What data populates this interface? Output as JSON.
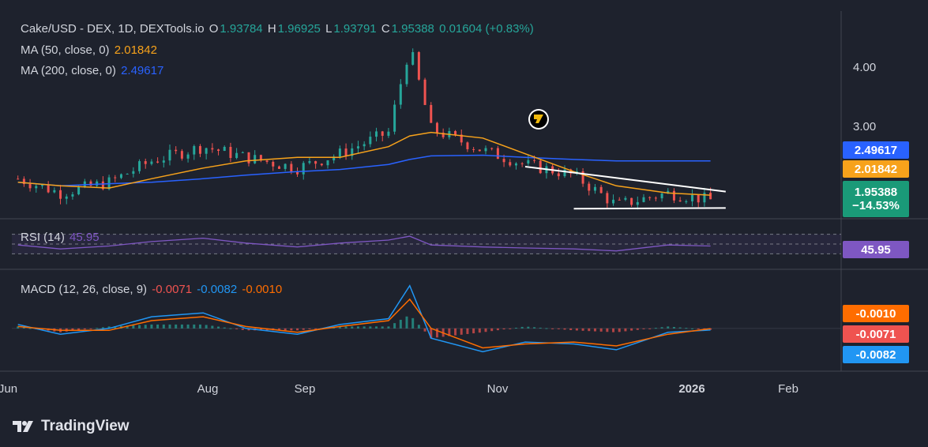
{
  "header": {
    "title": "Cake/USD - DEX, 1D, DEXTools.io",
    "o_label": "O",
    "o_value": "1.93784",
    "h_label": "H",
    "h_value": "1.96925",
    "l_label": "L",
    "l_value": "1.93791",
    "c_label": "C",
    "c_value": "1.95388",
    "change": "0.01604 (+0.83%)"
  },
  "indicators": {
    "ma50_label": "MA (50, close, 0)",
    "ma50_value": "2.01842",
    "ma200_label": "MA (200, close, 0)",
    "ma200_value": "2.49617",
    "rsi_label": "RSI (14)",
    "rsi_value": "45.95",
    "macd_label": "MACD (12, 26, close, 9)",
    "macd_hist": "-0.0071",
    "macd_line": "-0.0082",
    "macd_signal": "-0.0010"
  },
  "price_axis": {
    "ticks": [
      "4.00",
      "3.00"
    ],
    "ma200_tag": "2.49617",
    "ma50_tag": "2.01842",
    "last_price": "1.95388",
    "last_change": "−14.53%",
    "rsi_tag": "45.95",
    "macd_signal_tag": "-0.0010",
    "macd_hist_tag": "-0.0071",
    "macd_line_tag": "-0.0082"
  },
  "time_axis": [
    "Jun",
    "Aug",
    "Sep",
    "Nov",
    "2026",
    "Feb"
  ],
  "brand": "TradingView",
  "colors": {
    "up": "#26a69a",
    "down": "#ef5350",
    "ma50": "#f7a21b",
    "ma200": "#2962ff",
    "rsi": "#7e57c2",
    "macd": "#2196f3",
    "signal": "#ff6d00",
    "background": "#1e222d"
  },
  "chart_data": {
    "type": "candlestick",
    "title": "Cake/USD - DEX, 1D, DEXTools.io",
    "x": [
      "2025-06-01",
      "2025-06-15",
      "2025-07-01",
      "2025-07-15",
      "2025-08-01",
      "2025-08-15",
      "2025-09-01",
      "2025-09-15",
      "2025-10-01",
      "2025-10-08",
      "2025-10-15",
      "2025-11-01",
      "2025-11-15",
      "2025-12-01",
      "2025-12-15",
      "2026-01-01",
      "2026-01-15"
    ],
    "close": [
      2.25,
      2.05,
      2.2,
      2.5,
      2.7,
      2.55,
      2.4,
      2.6,
      2.9,
      4.1,
      2.95,
      2.65,
      2.45,
      2.3,
      1.88,
      2.05,
      1.95
    ],
    "ma50": [
      2.2,
      2.15,
      2.12,
      2.25,
      2.4,
      2.5,
      2.55,
      2.55,
      2.7,
      2.85,
      2.9,
      2.82,
      2.6,
      2.35,
      2.15,
      2.05,
      2.02
    ],
    "ma200": [
      2.2,
      2.15,
      2.18,
      2.2,
      2.25,
      2.3,
      2.35,
      2.38,
      2.45,
      2.52,
      2.57,
      2.58,
      2.55,
      2.52,
      2.5,
      2.5,
      2.5
    ],
    "rsi": [
      48,
      40,
      46,
      55,
      62,
      52,
      44,
      52,
      58,
      66,
      48,
      44,
      42,
      40,
      36,
      48,
      46
    ],
    "macd": [
      0.02,
      -0.03,
      0.0,
      0.06,
      0.08,
      0.0,
      -0.03,
      0.02,
      0.05,
      0.22,
      -0.05,
      -0.12,
      -0.07,
      -0.08,
      -0.11,
      -0.02,
      -0.0082
    ],
    "signal": [
      0.01,
      -0.01,
      -0.01,
      0.04,
      0.06,
      0.01,
      -0.02,
      0.01,
      0.04,
      0.15,
      0.0,
      -0.1,
      -0.08,
      -0.07,
      -0.09,
      -0.03,
      -0.001
    ],
    "rsi_levels": [
      70,
      50,
      30
    ],
    "ylim": [
      1.7,
      4.6
    ],
    "price_ticks": [
      4.0,
      3.0
    ],
    "trendlines": [
      {
        "x": [
          "2025-11-15",
          "2026-01-20"
        ],
        "y": [
          2.42,
          2.07
        ]
      },
      {
        "x": [
          "2025-12-01",
          "2026-01-20"
        ],
        "y": [
          1.83,
          1.84
        ]
      }
    ]
  }
}
